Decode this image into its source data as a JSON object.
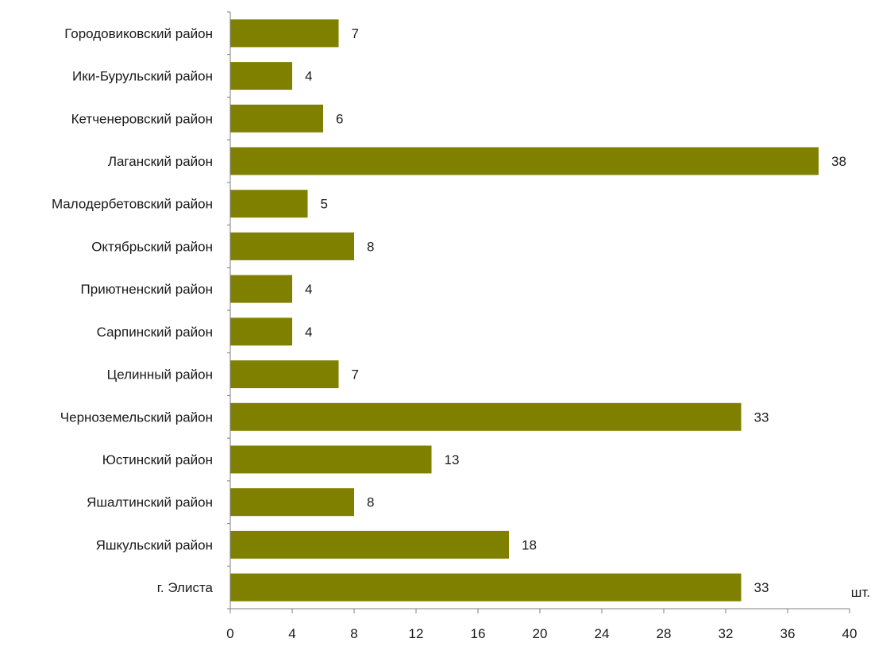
{
  "chart_data": {
    "type": "bar",
    "orientation": "horizontal",
    "categories": [
      "Городовиковский район",
      "Ики-Бурульский район",
      "Кетченеровский район",
      "Лаганский район",
      "Малодербетовский район",
      "Октябрьский район",
      "Приютненский район",
      "Сарпинский район",
      "Целинный район",
      "Черноземельский район",
      "Юстинский район",
      "Яшалтинский район",
      "Яшкульский район",
      "г. Элиста"
    ],
    "values": [
      7,
      4,
      6,
      38,
      5,
      8,
      4,
      4,
      7,
      33,
      13,
      8,
      18,
      33
    ],
    "value_labels": [
      "7",
      "4",
      "6",
      "38",
      "5",
      "8",
      "4",
      "4",
      "7",
      "33",
      "13",
      "8",
      "18",
      "33"
    ],
    "xlim": [
      0,
      40
    ],
    "x_ticks": [
      0,
      4,
      8,
      12,
      16,
      20,
      24,
      28,
      32,
      36,
      40
    ],
    "x_tick_labels": [
      "0",
      "4",
      "8",
      "12",
      "16",
      "20",
      "24",
      "28",
      "32",
      "36",
      "40"
    ],
    "x_unit": "шт.",
    "bar_color": "#808000",
    "grid": false,
    "legend": "none"
  }
}
